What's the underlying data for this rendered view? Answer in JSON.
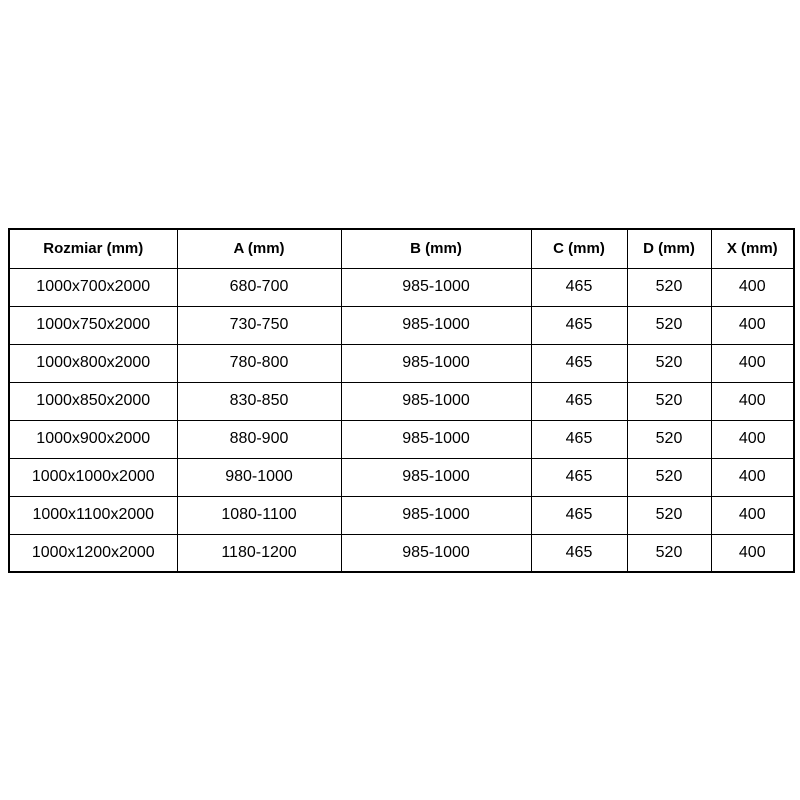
{
  "page": {
    "background_color": "#ffffff",
    "border_color": "#000000",
    "text_color": "#000000"
  },
  "table": {
    "columns": [
      "Rozmiar (mm)",
      "A (mm)",
      "B (mm)",
      "C (mm)",
      "D (mm)",
      "X (mm)"
    ],
    "rows": [
      [
        "1000x700x2000",
        "680-700",
        "985-1000",
        "465",
        "520",
        "400"
      ],
      [
        "1000x750x2000",
        "730-750",
        "985-1000",
        "465",
        "520",
        "400"
      ],
      [
        "1000x800x2000",
        "780-800",
        "985-1000",
        "465",
        "520",
        "400"
      ],
      [
        "1000x850x2000",
        "830-850",
        "985-1000",
        "465",
        "520",
        "400"
      ],
      [
        "1000x900x2000",
        "880-900",
        "985-1000",
        "465",
        "520",
        "400"
      ],
      [
        "1000x1000x2000",
        "980-1000",
        "985-1000",
        "465",
        "520",
        "400"
      ],
      [
        "1000x1100x2000",
        "1080-1100",
        "985-1000",
        "465",
        "520",
        "400"
      ],
      [
        "1000x1200x2000",
        "1180-1200",
        "985-1000",
        "465",
        "520",
        "400"
      ]
    ]
  },
  "chart_data": {
    "type": "table",
    "title": "",
    "categories": [
      "Rozmiar (mm)",
      "A (mm)",
      "B (mm)",
      "C (mm)",
      "D (mm)",
      "X (mm)"
    ],
    "values": [
      [
        "1000x700x2000",
        "680-700",
        "985-1000",
        "465",
        "520",
        "400"
      ],
      [
        "1000x750x2000",
        "730-750",
        "985-1000",
        "465",
        "520",
        "400"
      ],
      [
        "1000x800x2000",
        "780-800",
        "985-1000",
        "465",
        "520",
        "400"
      ],
      [
        "1000x850x2000",
        "830-850",
        "985-1000",
        "465",
        "520",
        "400"
      ],
      [
        "1000x900x2000",
        "880-900",
        "985-1000",
        "465",
        "520",
        "400"
      ],
      [
        "1000x1000x2000",
        "980-1000",
        "985-1000",
        "465",
        "520",
        "400"
      ],
      [
        "1000x1100x2000",
        "1080-1100",
        "985-1000",
        "465",
        "520",
        "400"
      ],
      [
        "1000x1200x2000",
        "1180-1200",
        "985-1000",
        "465",
        "520",
        "400"
      ]
    ]
  }
}
